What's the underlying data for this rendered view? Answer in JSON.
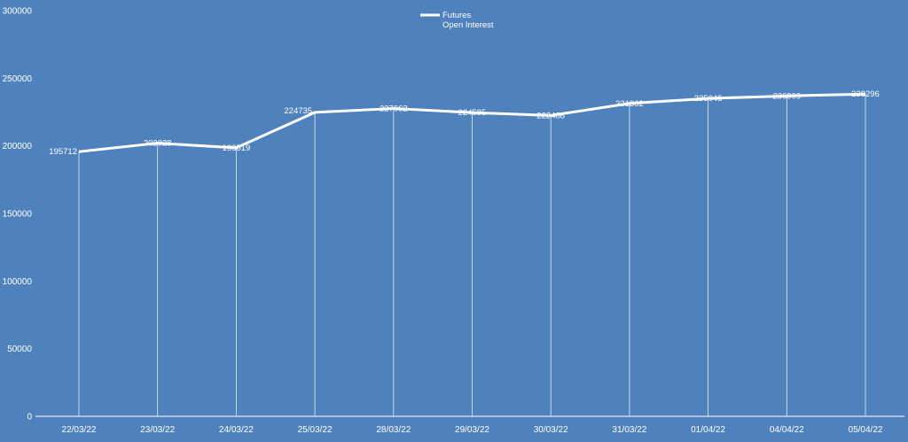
{
  "chart_data": {
    "type": "line",
    "title": "",
    "xlabel": "",
    "ylabel": "",
    "categories": [
      "22/03/22",
      "23/03/22",
      "24/03/22",
      "25/03/22",
      "28/03/22",
      "29/03/22",
      "30/03/22",
      "31/03/22",
      "01/04/22",
      "04/04/22",
      "05/04/22"
    ],
    "series": [
      {
        "name": "Futures Open Interest",
        "values": [
          195712,
          202028,
          198519,
          224735,
          227662,
          224585,
          222488,
          231362,
          235045,
          236909,
          238296
        ],
        "data_labels": [
          "195712",
          "202028",
          "198519",
          "224735",
          "227662",
          "224585",
          "222488",
          "231362",
          "235045",
          "236909",
          "238296"
        ]
      }
    ],
    "legend": {
      "position": "top-center",
      "label_line1": "Futures",
      "label_line2": "Open Interest"
    },
    "ylim": [
      0,
      300000
    ],
    "yticks": [
      0,
      50000,
      100000,
      150000,
      200000,
      250000,
      300000
    ],
    "ytick_labels": [
      "0",
      "50000",
      "100000",
      "150000",
      "200000",
      "250000",
      "300000"
    ],
    "drop_lines": true,
    "gridlines": false,
    "colors": {
      "background": "#4f81bd",
      "line": "#ffffff",
      "text": "#ffffff"
    }
  }
}
